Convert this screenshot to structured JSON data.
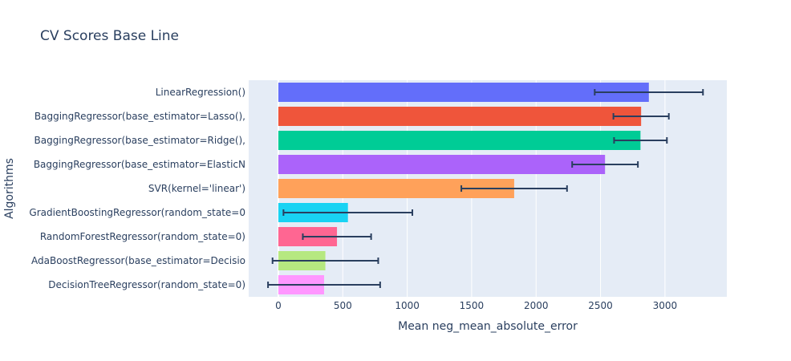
{
  "chart_data": {
    "type": "bar",
    "orientation": "horizontal",
    "title": "CV Scores Base Line",
    "xlabel": "Mean neg_mean_absolute_error",
    "ylabel": "Algorithms",
    "xlim": [
      -230,
      3480
    ],
    "xticks": [
      0,
      500,
      1000,
      1500,
      2000,
      2500,
      3000
    ],
    "grid": true,
    "categories": [
      "LinearRegression()",
      "BaggingRegressor(base_estimator=Lasso(),",
      "BaggingRegressor(base_estimator=Ridge(),",
      "BaggingRegressor(base_estimator=ElasticN",
      "SVR(kernel='linear')",
      "GradientBoostingRegressor(random_state=0",
      "RandomForestRegressor(random_state=0)",
      "AdaBoostRegressor(base_estimator=Decisio",
      "DecisionTreeRegressor(random_state=0)"
    ],
    "values": [
      2875,
      2815,
      2810,
      2535,
      1830,
      540,
      455,
      365,
      355
    ],
    "errors": [
      420,
      215,
      205,
      255,
      410,
      500,
      265,
      410,
      435
    ],
    "colors": [
      "#636efa",
      "#EF553B",
      "#00cc96",
      "#ab63fa",
      "#FFA15A",
      "#19d3f3",
      "#FF6692",
      "#B6E880",
      "#FF97FF"
    ],
    "error_color": "#2a3f5f"
  }
}
